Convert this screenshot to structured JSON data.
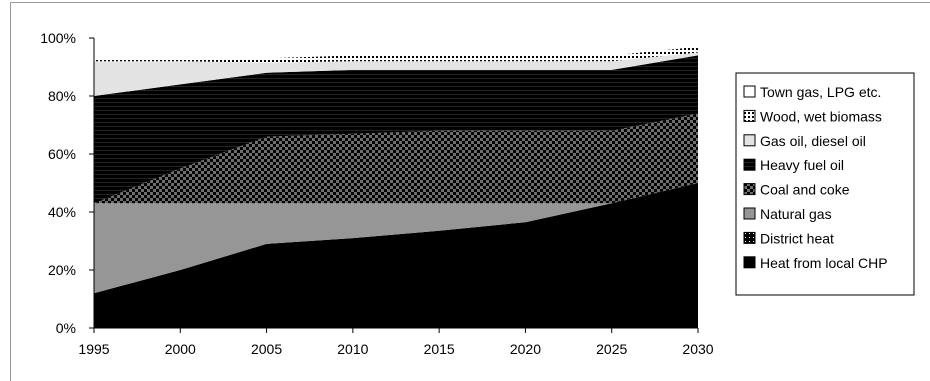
{
  "chart_data": {
    "type": "area",
    "stacked": true,
    "percent": true,
    "title": "",
    "xlabel": "",
    "ylabel": "",
    "x": [
      1995,
      2000,
      2005,
      2010,
      2015,
      2020,
      2025,
      2030
    ],
    "x_tick_labels": [
      "1995",
      "2000",
      "2005",
      "2010",
      "2015",
      "2020",
      "2025",
      "2030"
    ],
    "ylim": [
      0,
      100
    ],
    "y_tick_labels": [
      "0%",
      "20%",
      "40%",
      "60%",
      "80%",
      "100%"
    ],
    "grid": false,
    "legend_position": "right",
    "series": [
      {
        "name": "Heat from local CHP",
        "fill": "solid-black",
        "values": [
          12,
          20,
          29,
          31,
          33.5,
          36.5,
          43,
          50
        ]
      },
      {
        "name": "District heat",
        "fill": "dots-black",
        "values": [
          0,
          0,
          0,
          0,
          0,
          0,
          0,
          0
        ]
      },
      {
        "name": "Natural gas",
        "fill": "solid-gray",
        "values": [
          31,
          23,
          14,
          12,
          9.5,
          6.5,
          0,
          0
        ]
      },
      {
        "name": "Coal and coke",
        "fill": "checker-dark",
        "values": [
          0,
          12,
          23,
          24,
          25,
          25,
          25,
          24
        ]
      },
      {
        "name": "Heavy fuel oil",
        "fill": "hlines-black",
        "values": [
          37,
          29,
          22,
          22,
          21,
          21,
          21,
          20
        ]
      },
      {
        "name": "Gas oil, diesel oil",
        "fill": "solid-light",
        "values": [
          12,
          8,
          3.5,
          3,
          3,
          3,
          3,
          1
        ]
      },
      {
        "name": "Wood, wet biomass",
        "fill": "dots-white",
        "values": [
          1,
          1,
          1.5,
          2,
          2,
          2,
          2,
          2
        ]
      },
      {
        "name": "Town gas, LPG etc.",
        "fill": "solid-white",
        "values": [
          5,
          5,
          4,
          4,
          4,
          4,
          3,
          2
        ]
      }
    ]
  }
}
